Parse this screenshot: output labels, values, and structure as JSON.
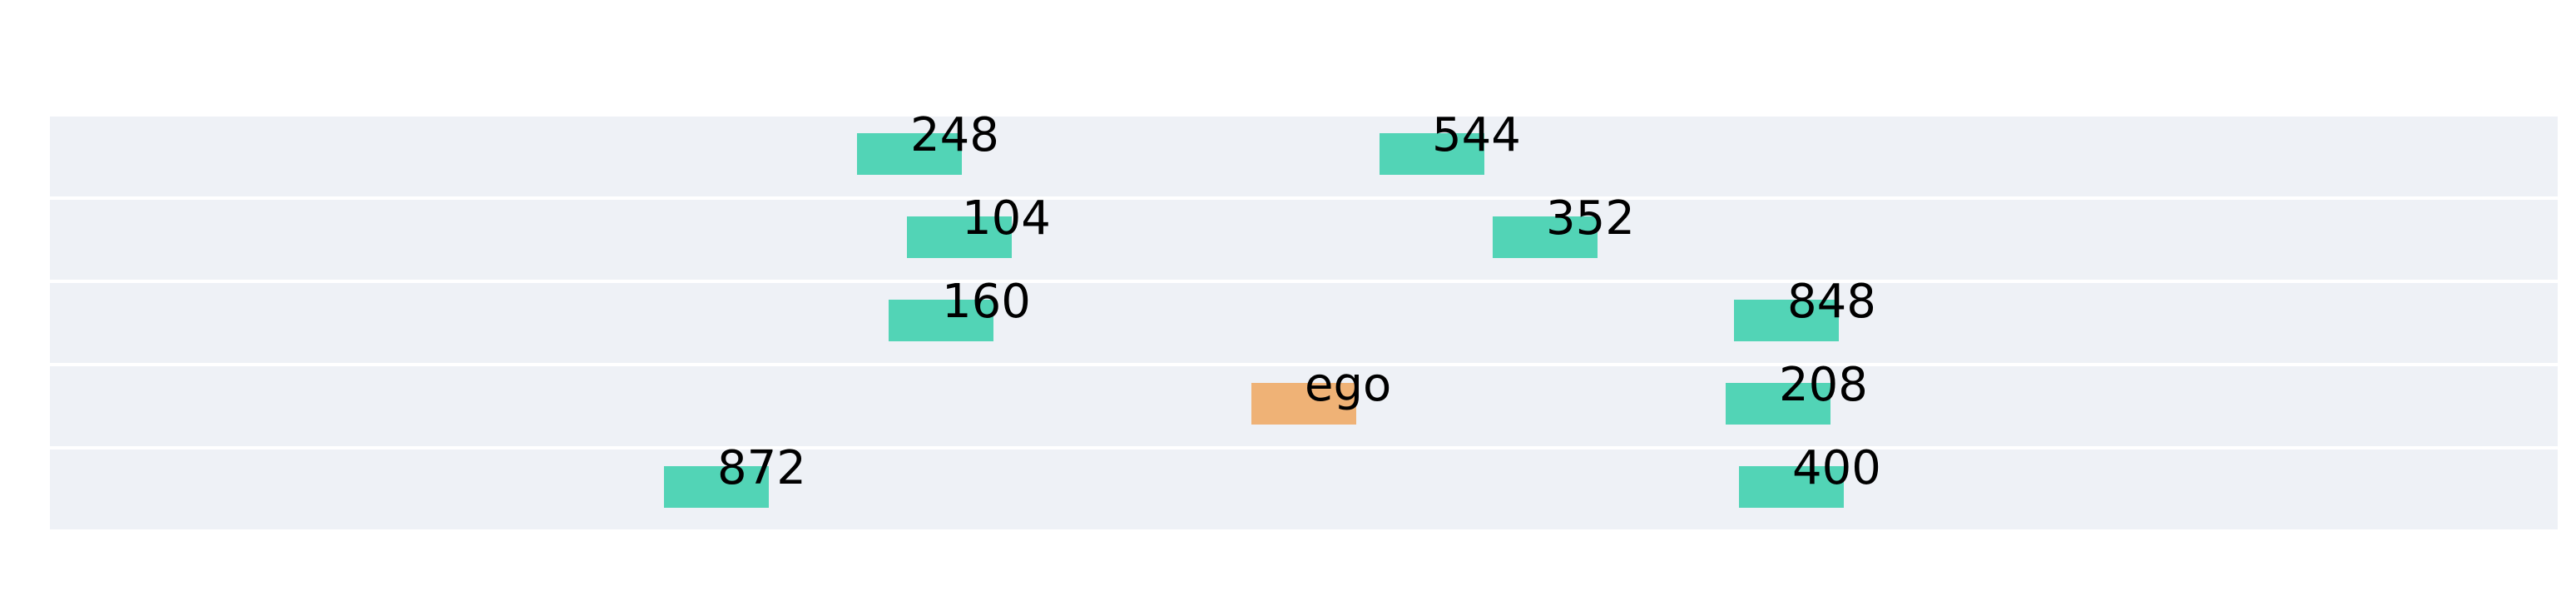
{
  "colors": {
    "background": "#ffffff",
    "lane": "#eef1f6",
    "vehicle": "#52d4b6",
    "ego": "#efb276",
    "text": "#000000"
  },
  "lanes": [
    {
      "vehicles": [
        {
          "label": "248",
          "kind": "vehicle"
        },
        {
          "label": "544",
          "kind": "vehicle"
        }
      ]
    },
    {
      "vehicles": [
        {
          "label": "104",
          "kind": "vehicle"
        },
        {
          "label": "352",
          "kind": "vehicle"
        }
      ]
    },
    {
      "vehicles": [
        {
          "label": "160",
          "kind": "vehicle"
        },
        {
          "label": "848",
          "kind": "vehicle"
        }
      ]
    },
    {
      "vehicles": [
        {
          "label": "ego",
          "kind": "ego"
        },
        {
          "label": "208",
          "kind": "vehicle"
        }
      ]
    },
    {
      "vehicles": [
        {
          "label": "872",
          "kind": "vehicle"
        },
        {
          "label": "400",
          "kind": "vehicle"
        }
      ]
    }
  ]
}
